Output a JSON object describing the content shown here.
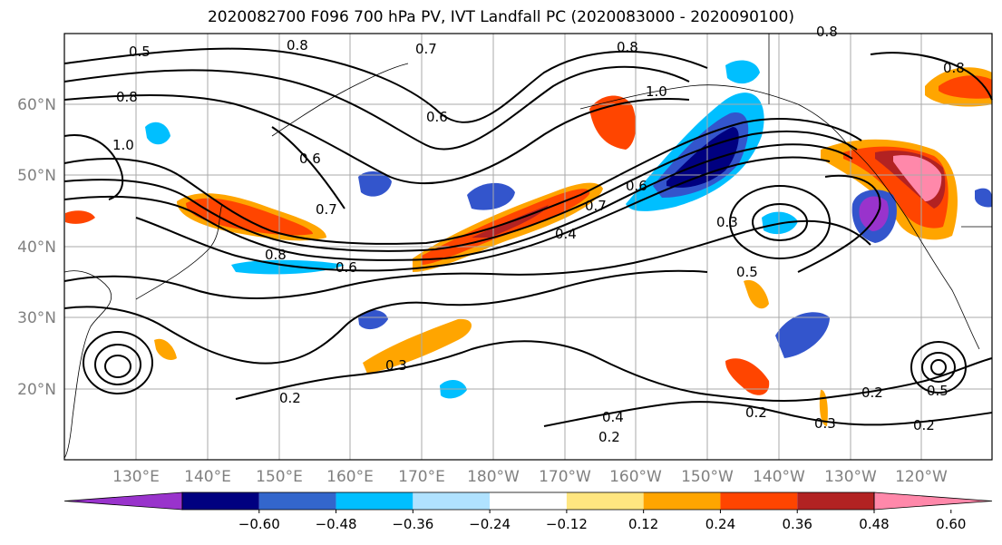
{
  "title": "2020082700 F096 700 hPa PV, IVT Landfall PC (2020083000 - 2020090100)",
  "lat_labels": [
    "60°N",
    "50°N",
    "40°N",
    "30°N",
    "20°N"
  ],
  "lon_labels": [
    "130°E",
    "140°E",
    "150°E",
    "160°E",
    "170°E",
    "180°W",
    "170°W",
    "160°W",
    "150°W",
    "140°W",
    "130°W",
    "120°W"
  ],
  "contour_labels": [
    "0.5",
    "0.8",
    "0.7",
    "0.8",
    "0.8",
    "1.0",
    "0.6",
    "0.6",
    "0.6",
    "0.7",
    "0.7",
    "0.8",
    "0.6",
    "0.4",
    "0.3",
    "0.5",
    "0.3",
    "0.2",
    "0.4",
    "0.2",
    "0.2",
    "0.3",
    "0.2",
    "0.5",
    "0.2",
    "1.0",
    "0.8",
    "0.8"
  ],
  "colorbar": {
    "colors": [
      "#9933cc",
      "#000080",
      "#3366cc",
      "#00bfff",
      "#b0e2ff",
      "#ffffff",
      "#ffe680",
      "#ffa500",
      "#ff4500",
      "#b22222",
      "#ff88aa"
    ],
    "tick_labels": [
      "−0.60",
      "−0.48",
      "−0.36",
      "−0.24",
      "−0.12",
      "0.12",
      "0.24",
      "0.36",
      "0.48",
      "0.60"
    ]
  },
  "colors": {
    "neg_strong": "#000080",
    "neg_mid": "#3355cc",
    "neg_light": "#00bfff",
    "neg_purple": "#9933cc",
    "pos_light": "#ffa500",
    "pos_mid": "#ff4500",
    "pos_strong": "#b22222",
    "pos_pink": "#ff88aa",
    "gridline": "#aaaaaa"
  }
}
